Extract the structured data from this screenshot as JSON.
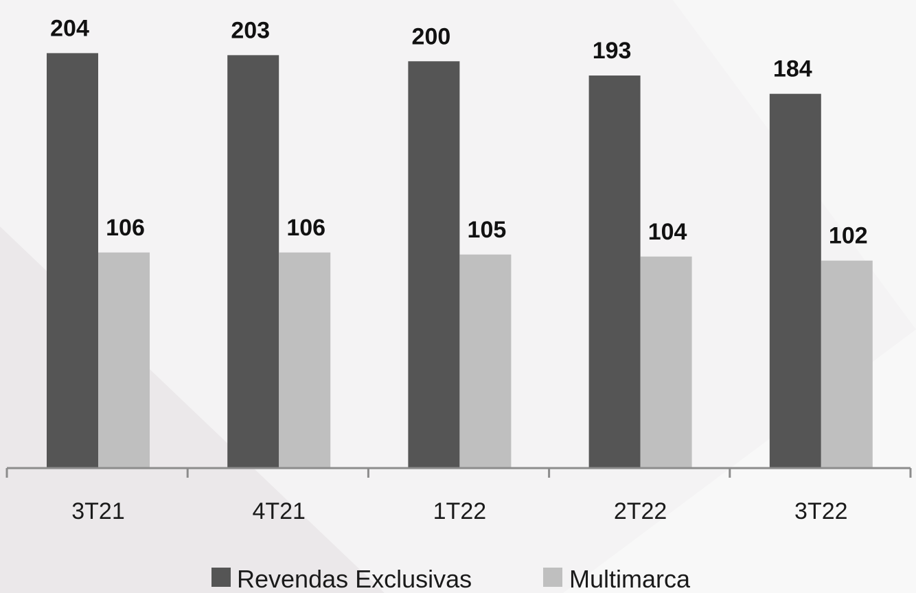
{
  "chart_data": {
    "type": "bar",
    "title": "",
    "xlabel": "",
    "ylabel": "",
    "categories": [
      "3T21",
      "4T21",
      "1T22",
      "2T22",
      "3T22"
    ],
    "series": [
      {
        "name": "Revendas Exclusivas",
        "values": [
          204,
          203,
          200,
          193,
          184
        ],
        "color": "#555555"
      },
      {
        "name": "Multimarca",
        "values": [
          106,
          106,
          105,
          104,
          102
        ],
        "color": "#bfbfbf"
      }
    ],
    "ylim": [
      0,
      220
    ],
    "grid": false,
    "data_labels": true,
    "legend": "bottom"
  },
  "colors": {
    "background": "#f4f3f4",
    "axis": "#8c8c8c",
    "text": "#1a1a1a"
  }
}
